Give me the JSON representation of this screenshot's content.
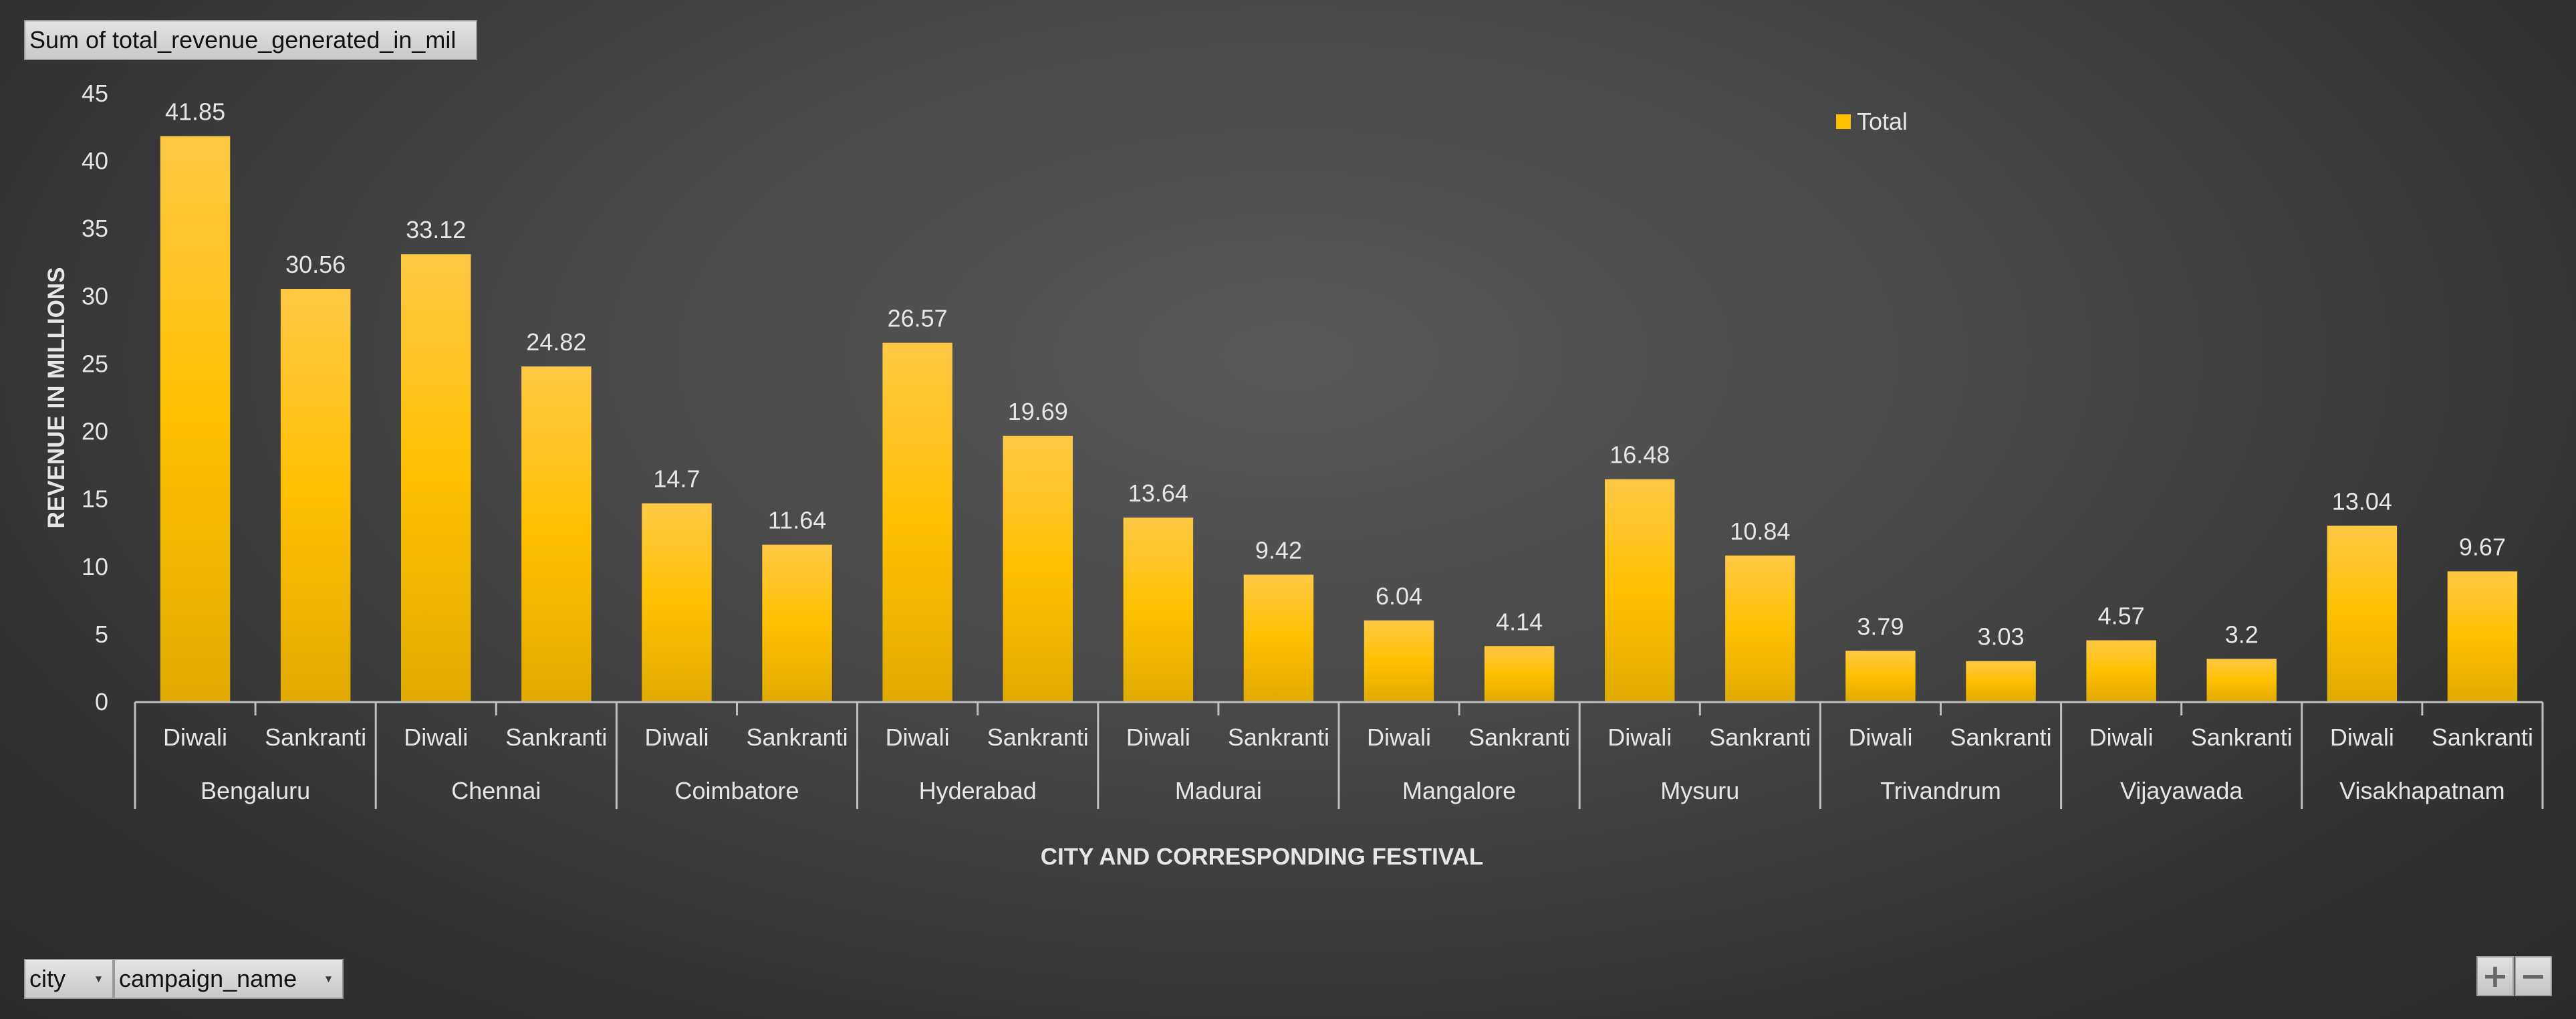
{
  "pivot": {
    "value_field": "Sum of total_revenue_generated_in_mil",
    "filters": [
      {
        "label": "city"
      },
      {
        "label": "campaign_name"
      }
    ],
    "zoom_in": "+",
    "zoom_out": "−"
  },
  "chart_data": {
    "type": "bar",
    "title": "",
    "xlabel": "CITY AND CORRESPONDING FESTIVAL",
    "ylabel": "REVENUE IN MILLIONS",
    "ylim": [
      0,
      45
    ],
    "yticks": [
      0,
      5,
      10,
      15,
      20,
      25,
      30,
      35,
      40,
      45
    ],
    "grid": false,
    "legend": {
      "position": "top-right",
      "entries": [
        "Total"
      ]
    },
    "bar_color": "#ffc000",
    "groups": [
      {
        "name": "Bengaluru",
        "categories": [
          "Diwali",
          "Sankranti"
        ],
        "values": [
          41.85,
          30.56
        ]
      },
      {
        "name": "Chennai",
        "categories": [
          "Diwali",
          "Sankranti"
        ],
        "values": [
          33.12,
          24.82
        ]
      },
      {
        "name": "Coimbatore",
        "categories": [
          "Diwali",
          "Sankranti"
        ],
        "values": [
          14.7,
          11.64
        ]
      },
      {
        "name": "Hyderabad",
        "categories": [
          "Diwali",
          "Sankranti"
        ],
        "values": [
          26.57,
          19.69
        ]
      },
      {
        "name": "Madurai",
        "categories": [
          "Diwali",
          "Sankranti"
        ],
        "values": [
          13.64,
          9.42
        ]
      },
      {
        "name": "Mangalore",
        "categories": [
          "Diwali",
          "Sankranti"
        ],
        "values": [
          6.04,
          4.14
        ]
      },
      {
        "name": "Mysuru",
        "categories": [
          "Diwali",
          "Sankranti"
        ],
        "values": [
          16.48,
          10.84
        ]
      },
      {
        "name": "Trivandrum",
        "categories": [
          "Diwali",
          "Sankranti"
        ],
        "values": [
          3.79,
          3.03
        ]
      },
      {
        "name": "Vijayawada",
        "categories": [
          "Diwali",
          "Sankranti"
        ],
        "values": [
          4.57,
          3.2
        ]
      },
      {
        "name": "Visakhapatnam",
        "categories": [
          "Diwali",
          "Sankranti"
        ],
        "values": [
          13.04,
          9.67
        ]
      }
    ],
    "series": [
      {
        "name": "Total"
      }
    ]
  }
}
